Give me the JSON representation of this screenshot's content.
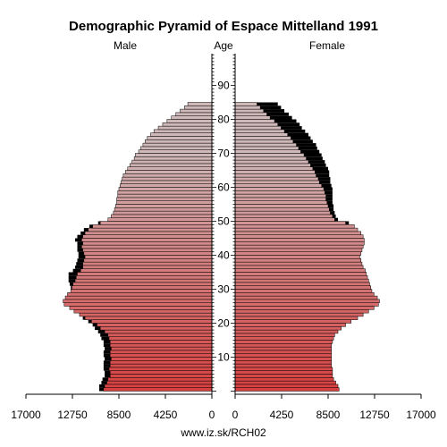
{
  "chart_data": {
    "type": "bar",
    "title": "Demographic Pyramid of Espace Mittelland 1991",
    "left_label": "Male",
    "center_label": "Age",
    "right_label": "Female",
    "source": "www.iz.sk/RCH02",
    "x_ticks_left": [
      "17000",
      "12750",
      "8500",
      "4250",
      "0"
    ],
    "x_ticks_right": [
      "0",
      "4250",
      "8500",
      "12750",
      "17000"
    ],
    "age_ticks": [
      "10",
      "20",
      "30",
      "40",
      "50",
      "60",
      "70",
      "80",
      "90"
    ],
    "xlim": [
      0,
      17000
    ],
    "ages": [
      0,
      1,
      2,
      3,
      4,
      5,
      6,
      7,
      8,
      9,
      10,
      11,
      12,
      13,
      14,
      15,
      16,
      17,
      18,
      19,
      20,
      21,
      22,
      23,
      24,
      25,
      26,
      27,
      28,
      29,
      30,
      31,
      32,
      33,
      34,
      35,
      36,
      37,
      38,
      39,
      40,
      41,
      42,
      43,
      44,
      45,
      46,
      47,
      48,
      49,
      50,
      51,
      52,
      53,
      54,
      55,
      56,
      57,
      58,
      59,
      60,
      61,
      62,
      63,
      64,
      65,
      66,
      67,
      68,
      69,
      70,
      71,
      72,
      73,
      74,
      75,
      76,
      77,
      78,
      79,
      80,
      81,
      82,
      83,
      84
    ],
    "series": [
      {
        "name": "Male",
        "values": [
          9900,
          9800,
          9600,
          9500,
          9300,
          9300,
          9400,
          9300,
          9300,
          9200,
          9300,
          9300,
          9200,
          9300,
          9300,
          9400,
          9500,
          9800,
          10200,
          10500,
          11000,
          11600,
          12100,
          12600,
          13000,
          13500,
          13600,
          13400,
          13200,
          12900,
          12800,
          12700,
          12500,
          12400,
          12300,
          12000,
          11800,
          11800,
          11700,
          11600,
          11700,
          11800,
          11900,
          11800,
          11900,
          11800,
          11600,
          11300,
          10900,
          10200,
          9500,
          9200,
          9000,
          8900,
          8800,
          8700,
          8700,
          8600,
          8600,
          8500,
          8400,
          8300,
          8200,
          8100,
          7900,
          7700,
          7500,
          7300,
          7100,
          7000,
          6700,
          6500,
          6300,
          6100,
          5900,
          5600,
          5300,
          4900,
          4500,
          4100,
          3700,
          3300,
          2900,
          2500,
          2200
        ],
        "excess": [
          400,
          500,
          500,
          500,
          500,
          500,
          500,
          600,
          600,
          600,
          600,
          600,
          600,
          600,
          600,
          700,
          700,
          600,
          500,
          400,
          300,
          200,
          0,
          0,
          0,
          0,
          0,
          0,
          0,
          0,
          100,
          300,
          600,
          700,
          800,
          700,
          700,
          600,
          600,
          600,
          500,
          500,
          400,
          500,
          600,
          500,
          400,
          400,
          300,
          200,
          0,
          0,
          0,
          0,
          0,
          0,
          0,
          0,
          0,
          0,
          0,
          0,
          0,
          0,
          0,
          0,
          0,
          0,
          0,
          0,
          0,
          0,
          0,
          0,
          0,
          0,
          0,
          0,
          0,
          0,
          0,
          0,
          0,
          0,
          0
        ]
      },
      {
        "name": "Female",
        "values": [
          9500,
          9400,
          9200,
          9000,
          8900,
          8900,
          8900,
          8800,
          8800,
          8800,
          8800,
          8800,
          8800,
          8800,
          8900,
          9000,
          9100,
          9400,
          9700,
          10100,
          10600,
          11200,
          11700,
          12200,
          12700,
          13100,
          13200,
          13000,
          12700,
          12500,
          12400,
          12300,
          12200,
          12100,
          12000,
          11900,
          11700,
          11600,
          11500,
          11400,
          11500,
          11600,
          11700,
          11800,
          11800,
          11700,
          11500,
          11200,
          10900,
          10100,
          9100,
          8900,
          8700,
          8600,
          8500,
          8400,
          8300,
          8300,
          8200,
          8100,
          7900,
          7700,
          7600,
          7400,
          7300,
          7100,
          6900,
          6700,
          6500,
          6300,
          6000,
          5800,
          5600,
          5300,
          5100,
          4800,
          4500,
          4200,
          3900,
          3600,
          3200,
          2900,
          2600,
          2300,
          2000
        ],
        "excess": [
          0,
          0,
          0,
          0,
          0,
          0,
          0,
          0,
          0,
          0,
          0,
          0,
          0,
          0,
          0,
          0,
          0,
          0,
          0,
          0,
          0,
          0,
          0,
          0,
          0,
          0,
          0,
          0,
          0,
          0,
          0,
          0,
          0,
          0,
          0,
          0,
          0,
          0,
          0,
          0,
          0,
          0,
          0,
          0,
          0,
          0,
          0,
          0,
          0,
          300,
          300,
          300,
          400,
          400,
          500,
          500,
          600,
          600,
          700,
          800,
          900,
          1000,
          1100,
          1200,
          1300,
          1400,
          1400,
          1500,
          1500,
          1600,
          1700,
          1700,
          1800,
          1800,
          1800,
          1900,
          1900,
          1900,
          2000,
          2000,
          2000,
          2000,
          1900,
          1900,
          1900
        ]
      }
    ],
    "colors": {
      "bar_young": "#d84040",
      "bar_old": "#cfb8b8",
      "excess": "#000000",
      "outline": "#000000"
    }
  }
}
